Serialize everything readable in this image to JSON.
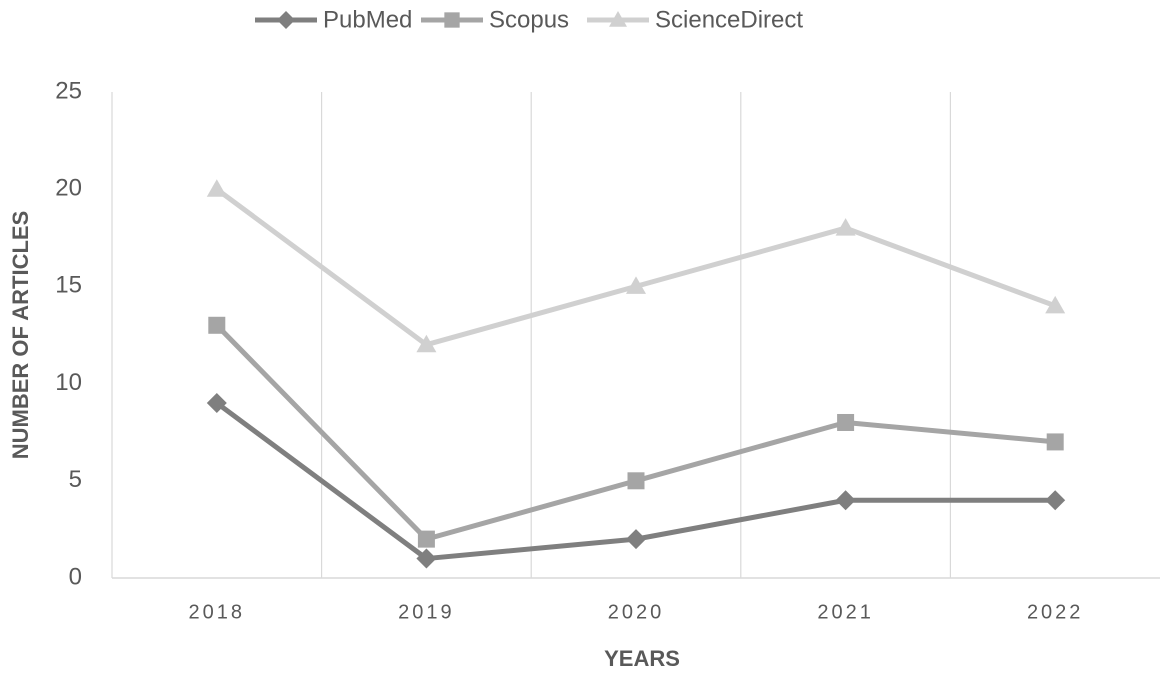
{
  "chart_data": {
    "type": "line",
    "categories": [
      "2018",
      "2019",
      "2020",
      "2021",
      "2022"
    ],
    "series": [
      {
        "name": "PubMed",
        "color": "#7f7f7f",
        "marker": "diamond",
        "values": [
          9,
          1,
          2,
          4,
          4
        ]
      },
      {
        "name": "Scopus",
        "color": "#a5a5a5",
        "marker": "square",
        "values": [
          13,
          2,
          5,
          8,
          7
        ]
      },
      {
        "name": "ScienceDirect",
        "color": "#d0d0d0",
        "marker": "triangle",
        "values": [
          20,
          12,
          15,
          18,
          14
        ]
      }
    ],
    "ylim": [
      0,
      25
    ],
    "yticks": [
      0,
      5,
      10,
      15,
      20,
      25
    ],
    "xlabel": "YEARS",
    "ylabel": "NUMBER OF ARTICLES",
    "legend": "top"
  }
}
